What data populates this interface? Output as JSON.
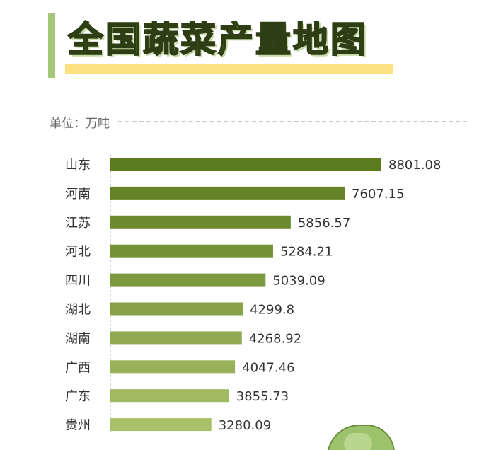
{
  "header": {
    "title": "全国蔬菜产量地图",
    "unit_label": "单位：万吨"
  },
  "colors": {
    "title_fill": "#5b7a2a",
    "accent_bar": "#a6c77a",
    "underline": "#fbe180",
    "bar_dark": "#5c7a1e",
    "bar_light": "#a9c26a"
  },
  "chart_data": {
    "type": "bar",
    "orientation": "horizontal",
    "title": "全国蔬菜产量地图",
    "unit": "单位：万吨",
    "categories": [
      "山东",
      "河南",
      "江苏",
      "河北",
      "四川",
      "湖北",
      "湖南",
      "广西",
      "广东",
      "贵州"
    ],
    "values": [
      8801.08,
      7607.15,
      5856.57,
      5284.21,
      5039.09,
      4299.8,
      4268.92,
      4047.46,
      3855.73,
      3280.09
    ],
    "value_labels": [
      "8801.08",
      "7607.15",
      "5856.57",
      "5284.21",
      "5039.09",
      "4299.8",
      "4268.92",
      "4047.46",
      "3855.73",
      "3280.09"
    ],
    "xlim": [
      0,
      8801.08
    ],
    "grid": false,
    "legend": "none"
  }
}
